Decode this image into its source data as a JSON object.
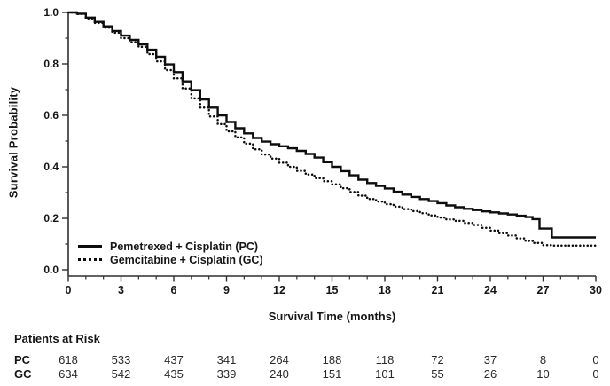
{
  "chart_data": {
    "type": "line",
    "subtype": "kaplan-meier-step",
    "title": "",
    "xlabel": "Survival Time (months)",
    "ylabel": "Survival Probability",
    "xlim": [
      0,
      30
    ],
    "ylim": [
      0,
      1
    ],
    "grid": false,
    "legend_position": "inside-lower-left",
    "x_ticks": [
      0,
      3,
      6,
      9,
      12,
      15,
      18,
      21,
      24,
      27,
      30
    ],
    "x_tick_labels": [
      "0",
      "3",
      "6",
      "9",
      "12",
      "15",
      "18",
      "21",
      "24",
      "27",
      "30"
    ],
    "x_minor_step": 1,
    "y_ticks": [
      0.0,
      0.2,
      0.4,
      0.6,
      0.8,
      1.0
    ],
    "y_tick_labels": [
      "0.0",
      "0.2",
      "0.4",
      "0.6",
      "0.8",
      "1.0"
    ],
    "y_minor_step": 0.1,
    "series": [
      {
        "name": "PC",
        "label": "Pemetrexed + Cisplatin (PC)",
        "style": "solid",
        "color": "#0d0d0d",
        "points": [
          [
            0,
            1.0
          ],
          [
            0.5,
            0.995
          ],
          [
            1,
            0.98
          ],
          [
            1.5,
            0.963
          ],
          [
            2,
            0.946
          ],
          [
            2.5,
            0.928
          ],
          [
            3,
            0.91
          ],
          [
            3.5,
            0.893
          ],
          [
            4,
            0.876
          ],
          [
            4.5,
            0.855
          ],
          [
            5,
            0.828
          ],
          [
            5.5,
            0.798
          ],
          [
            6,
            0.768
          ],
          [
            6.5,
            0.732
          ],
          [
            7,
            0.698
          ],
          [
            7.5,
            0.662
          ],
          [
            8,
            0.63
          ],
          [
            8.5,
            0.6
          ],
          [
            9,
            0.574
          ],
          [
            9.5,
            0.55
          ],
          [
            10,
            0.53
          ],
          [
            10.5,
            0.512
          ],
          [
            11,
            0.498
          ],
          [
            11.5,
            0.488
          ],
          [
            12,
            0.48
          ],
          [
            12.5,
            0.472
          ],
          [
            13,
            0.462
          ],
          [
            13.5,
            0.45
          ],
          [
            14,
            0.436
          ],
          [
            14.5,
            0.418
          ],
          [
            15,
            0.4
          ],
          [
            15.5,
            0.383
          ],
          [
            16,
            0.367
          ],
          [
            16.5,
            0.35
          ],
          [
            17,
            0.337
          ],
          [
            17.5,
            0.326
          ],
          [
            18,
            0.316
          ],
          [
            18.5,
            0.303
          ],
          [
            19,
            0.292
          ],
          [
            19.5,
            0.283
          ],
          [
            20,
            0.275
          ],
          [
            20.5,
            0.267
          ],
          [
            21,
            0.259
          ],
          [
            21.5,
            0.25
          ],
          [
            22,
            0.243
          ],
          [
            22.5,
            0.237
          ],
          [
            23,
            0.232
          ],
          [
            23.5,
            0.227
          ],
          [
            24,
            0.223
          ],
          [
            24.5,
            0.219
          ],
          [
            25,
            0.215
          ],
          [
            25.5,
            0.21
          ],
          [
            26,
            0.205
          ],
          [
            26.4,
            0.197
          ],
          [
            26.8,
            0.16
          ],
          [
            27.5,
            0.126
          ],
          [
            30,
            0.126
          ]
        ]
      },
      {
        "name": "GC",
        "label": "Gemcitabine + Cisplatin (GC)",
        "style": "dotted",
        "color": "#0d0d0d",
        "points": [
          [
            0,
            1.0
          ],
          [
            0.5,
            0.994
          ],
          [
            1,
            0.977
          ],
          [
            1.5,
            0.959
          ],
          [
            2,
            0.941
          ],
          [
            2.5,
            0.921
          ],
          [
            3,
            0.9
          ],
          [
            3.5,
            0.884
          ],
          [
            4,
            0.866
          ],
          [
            4.5,
            0.838
          ],
          [
            5,
            0.81
          ],
          [
            5.5,
            0.776
          ],
          [
            6,
            0.744
          ],
          [
            6.5,
            0.704
          ],
          [
            7,
            0.666
          ],
          [
            7.5,
            0.63
          ],
          [
            8,
            0.596
          ],
          [
            8.5,
            0.566
          ],
          [
            9,
            0.538
          ],
          [
            9.5,
            0.514
          ],
          [
            10,
            0.49
          ],
          [
            10.5,
            0.468
          ],
          [
            11,
            0.448
          ],
          [
            11.5,
            0.432
          ],
          [
            12,
            0.416
          ],
          [
            12.5,
            0.4
          ],
          [
            13,
            0.384
          ],
          [
            13.5,
            0.37
          ],
          [
            14,
            0.356
          ],
          [
            14.5,
            0.344
          ],
          [
            15,
            0.332
          ],
          [
            15.5,
            0.317
          ],
          [
            16,
            0.302
          ],
          [
            16.5,
            0.288
          ],
          [
            17,
            0.275
          ],
          [
            17.5,
            0.265
          ],
          [
            18,
            0.255
          ],
          [
            18.5,
            0.245
          ],
          [
            19,
            0.236
          ],
          [
            19.5,
            0.228
          ],
          [
            20,
            0.22
          ],
          [
            20.5,
            0.211
          ],
          [
            21,
            0.203
          ],
          [
            21.5,
            0.196
          ],
          [
            22,
            0.19
          ],
          [
            22.5,
            0.182
          ],
          [
            23,
            0.174
          ],
          [
            23.5,
            0.163
          ],
          [
            24,
            0.152
          ],
          [
            24.5,
            0.142
          ],
          [
            25,
            0.133
          ],
          [
            25.5,
            0.122
          ],
          [
            26,
            0.112
          ],
          [
            26.5,
            0.104
          ],
          [
            27,
            0.096
          ],
          [
            27.5,
            0.094
          ],
          [
            30,
            0.094
          ]
        ]
      }
    ]
  },
  "risk_table": {
    "title": "Patients at Risk",
    "time_points": [
      0,
      3,
      6,
      9,
      12,
      15,
      18,
      21,
      24,
      27,
      30
    ],
    "rows": [
      {
        "label": "PC",
        "counts": [
          "618",
          "533",
          "437",
          "341",
          "264",
          "188",
          "118",
          "72",
          "37",
          "8",
          "0"
        ]
      },
      {
        "label": "GC",
        "counts": [
          "634",
          "542",
          "435",
          "339",
          "240",
          "151",
          "101",
          "55",
          "26",
          "10",
          "0"
        ]
      }
    ]
  },
  "colors": {
    "background": "#ffffff",
    "axis": "#2f2f2f",
    "curve": "#0d0d0d",
    "text": "#151515",
    "risk_numbers": "#2a2a2a"
  }
}
